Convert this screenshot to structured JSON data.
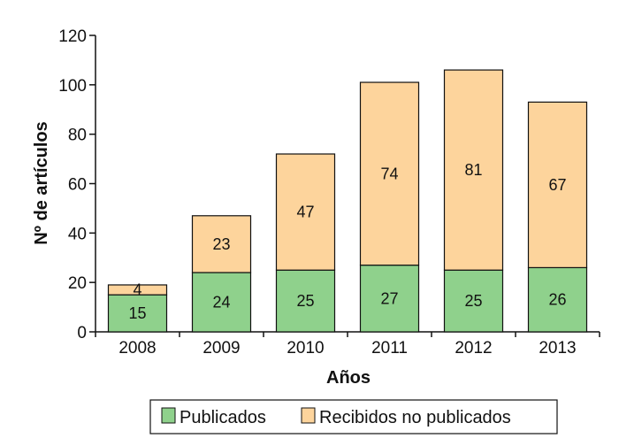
{
  "chart_data": {
    "type": "bar",
    "stacked": true,
    "categories": [
      "2008",
      "2009",
      "2010",
      "2011",
      "2012",
      "2013"
    ],
    "series": [
      {
        "name": "Publicados",
        "values": [
          15,
          24,
          25,
          27,
          25,
          26
        ],
        "color": "#8fd18c"
      },
      {
        "name": "Recibidos no publicados",
        "values": [
          4,
          23,
          47,
          74,
          81,
          67
        ],
        "color": "#fdd49c"
      }
    ],
    "xlabel": "Años",
    "ylabel": "Nº de artículos",
    "ylim": [
      0,
      120
    ],
    "yticks": [
      0,
      20,
      40,
      60,
      80,
      100,
      120
    ],
    "grid": false,
    "legend_position": "bottom"
  }
}
